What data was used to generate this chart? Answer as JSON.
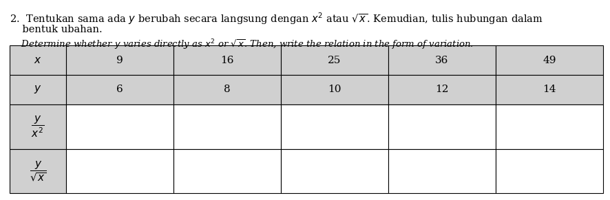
{
  "title_malay_1": "2.  Tentukan sama ada $y$ berubah secara langsung dengan $x^2$ atau $\\sqrt{x}$. Kemudian, tulis hubungan dalam",
  "title_malay_2": "    bentuk ubahan.",
  "title_english": "    Determine whether $y$ varies directly as $x^2$ or $\\sqrt{x}$. Then, write the relation in the form of variation.",
  "col_headers": [
    "$x$",
    "9",
    "16",
    "25",
    "36",
    "49"
  ],
  "row2": [
    "$y$",
    "6",
    "8",
    "10",
    "12",
    "14"
  ],
  "row3_label": "$\\dfrac{y}{x^2}$",
  "row4_label": "$\\dfrac{y}{\\sqrt{x}}$",
  "header_bg": "#d0d0d0",
  "text_color": "#000000",
  "background": "#ffffff"
}
